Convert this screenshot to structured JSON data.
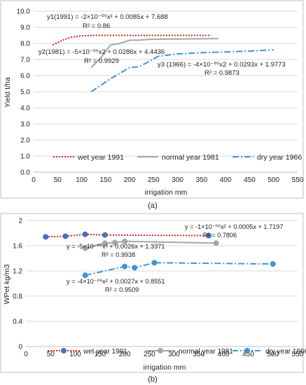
{
  "panels": [
    {
      "label": "(a)",
      "chart_data": {
        "type": "line",
        "xlabel": "irrigation  mm",
        "ylabel": "Yield  t/ha",
        "xlim": [
          0,
          550
        ],
        "ylim": [
          0.0,
          10.0
        ],
        "xticks": [
          0,
          50,
          100,
          150,
          200,
          250,
          300,
          350,
          400,
          450,
          500,
          550
        ],
        "xtick_labels": [
          "0",
          "50",
          "100",
          "150",
          "200",
          "250",
          "300",
          "350",
          "400",
          "450",
          "500",
          "550"
        ],
        "yticks": [
          0.0,
          1.0,
          2.0,
          3.0,
          4.0,
          5.0,
          6.0,
          7.0,
          8.0,
          9.0,
          10.0
        ],
        "ytick_labels": [
          "0.0",
          "1.0",
          "2.0",
          "3.0",
          "4.0",
          "5.0",
          "6.0",
          "7.0",
          "8.0",
          "9.0",
          "10.0"
        ],
        "grid": "horizontal",
        "legend_position": "bottom",
        "series": [
          {
            "name": "wet year 1991",
            "color": "#e8201e",
            "style": "dotted",
            "markers": false,
            "x": [
              40,
              60,
              80,
              100,
              120,
              150,
              200,
              250,
              300,
              370
            ],
            "y": [
              7.9,
              8.2,
              8.4,
              8.47,
              8.5,
              8.5,
              8.5,
              8.5,
              8.5,
              8.5
            ]
          },
          {
            "name": "normal year 1981",
            "color": "#a6a6a6",
            "style": "solid",
            "markers": false,
            "x": [
              120,
              140,
              160,
              180,
              200,
              220,
              240,
              280,
              320,
              385
            ],
            "y": [
              6.5,
              7.1,
              7.9,
              8.0,
              8.2,
              8.2,
              8.25,
              8.27,
              8.28,
              8.3
            ]
          },
          {
            "name": "dry year 1966",
            "color": "#3f95d3",
            "style": "dashdot",
            "markers": false,
            "x": [
              120,
              160,
              200,
              220,
              260,
              300,
              350,
              400,
              450,
              500
            ],
            "y": [
              5.0,
              5.8,
              6.5,
              6.55,
              7.2,
              7.35,
              7.42,
              7.47,
              7.52,
              7.6
            ]
          }
        ],
        "annotations": [
          "y1(1991) = -2×10⁻⁰⁵x² + 0.0085x + 7.688",
          "R² = 0.86",
          "y2(1981) = -5×10⁻⁰⁵x2 + 0.0286x + 4.4436",
          "R² = 0.9929",
          "y3 (1966) = -4×10⁻⁰⁵x2 + 0.0293x + 1.9773",
          "R² = 0.9873"
        ]
      }
    },
    {
      "label": "(b)",
      "chart_data": {
        "type": "line",
        "xlabel": "irrigation mm",
        "ylabel": "WPet  kg/m3",
        "xlim": [
          0,
          550
        ],
        "ylim": [
          0,
          2
        ],
        "xticks": [
          0,
          50,
          100,
          150,
          200,
          250,
          300,
          350,
          400,
          450,
          500,
          550
        ],
        "xtick_labels": [
          "0",
          "50",
          "100",
          "150",
          "200",
          "250",
          "300",
          "350",
          "400",
          "450",
          "500",
          "550"
        ],
        "yticks": [
          0,
          0.4,
          0.8,
          1.2,
          1.6,
          2.0
        ],
        "ytick_labels": [
          "0",
          "0.4",
          "0.8",
          "1.2",
          "1.6",
          "2"
        ],
        "grid": "horizontal",
        "legend_position": "bottom",
        "series": [
          {
            "name": "wet year 1991",
            "color": "#e8201e",
            "marker_color": "#4472c4",
            "style": "dotted",
            "markers": true,
            "x": [
              40,
              80,
              120,
              160,
              370
            ],
            "y": [
              1.74,
              1.75,
              1.78,
              1.77,
              1.76
            ]
          },
          {
            "name": "normal year 1981",
            "color": "#a6a6a6",
            "marker_color": "#a6a6a6",
            "style": "solid",
            "markers": true,
            "x": [
              120,
              160,
              180,
              200,
              385
            ],
            "y": [
              1.56,
              1.64,
              1.65,
              1.67,
              1.64
            ]
          },
          {
            "name": "dry year 1966",
            "color": "#3f95d3",
            "marker_color": "#3f95d3",
            "style": "dashdot",
            "markers": true,
            "x": [
              120,
              200,
              220,
              260,
              500
            ],
            "y": [
              1.13,
              1.27,
              1.25,
              1.33,
              1.31
            ]
          }
        ],
        "annotations": [
          "y = -1×10⁻⁰⁶x² + 0.0005x + 1.7197",
          "R² = 0.7806",
          "y = -5×10⁻⁰⁶x² + 0.0026x + 1.3371",
          "R² = 0.9938",
          "y = -4×10⁻⁰⁶x² + 0.0027x + 0.8551",
          "R² = 0.9509"
        ]
      }
    }
  ]
}
